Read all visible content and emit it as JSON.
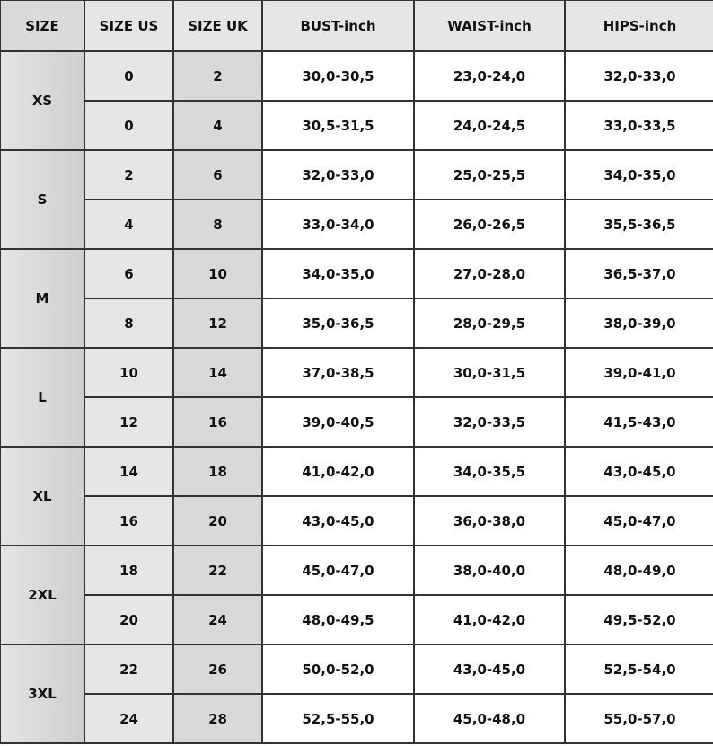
{
  "headers": [
    "SIZE",
    "SIZE US",
    "SIZE UK",
    "BUST-inch",
    "WAIST-inch",
    "HIPS-inch"
  ],
  "groups": [
    {
      "size": "XS",
      "rows": [
        [
          "0",
          "2",
          "30,0-30,5",
          "23,0-24,0",
          "32,0-33,0"
        ],
        [
          "0",
          "4",
          "30,5-31,5",
          "24,0-24,5",
          "33,0-33,5"
        ]
      ]
    },
    {
      "size": "S",
      "rows": [
        [
          "2",
          "6",
          "32,0-33,0",
          "25,0-25,5",
          "34,0-35,0"
        ],
        [
          "4",
          "8",
          "33,0-34,0",
          "26,0-26,5",
          "35,5-36,5"
        ]
      ]
    },
    {
      "size": "M",
      "rows": [
        [
          "6",
          "10",
          "34,0-35,0",
          "27,0-28,0",
          "36,5-37,0"
        ],
        [
          "8",
          "12",
          "35,0-36,5",
          "28,0-29,5",
          "38,0-39,0"
        ]
      ]
    },
    {
      "size": "L",
      "rows": [
        [
          "10",
          "14",
          "37,0-38,5",
          "30,0-31,5",
          "39,0-41,0"
        ],
        [
          "12",
          "16",
          "39,0-40,5",
          "32,0-33,5",
          "41,5-43,0"
        ]
      ]
    },
    {
      "size": "XL",
      "rows": [
        [
          "14",
          "18",
          "41,0-42,0",
          "34,0-35,5",
          "43,0-45,0"
        ],
        [
          "16",
          "20",
          "43,0-45,0",
          "36,0-38,0",
          "45,0-47,0"
        ]
      ]
    },
    {
      "size": "2XL",
      "rows": [
        [
          "18",
          "22",
          "45,0-47,0",
          "38,0-40,0",
          "48,0-49,0"
        ],
        [
          "20",
          "24",
          "48,0-49,5",
          "41,0-42,0",
          "49,5-52,0"
        ]
      ]
    },
    {
      "size": "3XL",
      "rows": [
        [
          "22",
          "26",
          "50,0-52,0",
          "43,0-45,0",
          "52,5-54,0"
        ],
        [
          "24",
          "28",
          "52,5-55,0",
          "45,0-48,0",
          "55,0-57,0"
        ]
      ]
    }
  ]
}
